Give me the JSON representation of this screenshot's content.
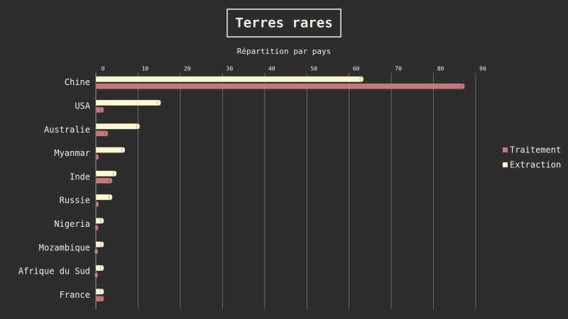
{
  "chart_data": {
    "type": "bar",
    "orientation": "horizontal",
    "title": "Terres rares",
    "subtitle": "Répartition par pays",
    "categories": [
      "Chine",
      "USA",
      "Australie",
      "Myanmar",
      "Inde",
      "Russie",
      "Nigeria",
      "Mozambique",
      "Afrique du Sud",
      "France"
    ],
    "series": [
      {
        "name": "Traitement",
        "color": "#c47a7a",
        "values": [
          87,
          1.5,
          2.5,
          0.3,
          3.5,
          0.3,
          0.2,
          0.1,
          0.1,
          1.5
        ]
      },
      {
        "name": "Extraction",
        "color": "#fdf7d2",
        "values": [
          63,
          15,
          10,
          6.5,
          4.5,
          3.5,
          1.5,
          1.5,
          1.5,
          1.5
        ]
      }
    ],
    "xlim": [
      0,
      90
    ],
    "xticks": [
      0,
      10,
      20,
      30,
      40,
      50,
      60,
      70,
      80,
      90
    ],
    "grid": true,
    "legend": "right"
  }
}
